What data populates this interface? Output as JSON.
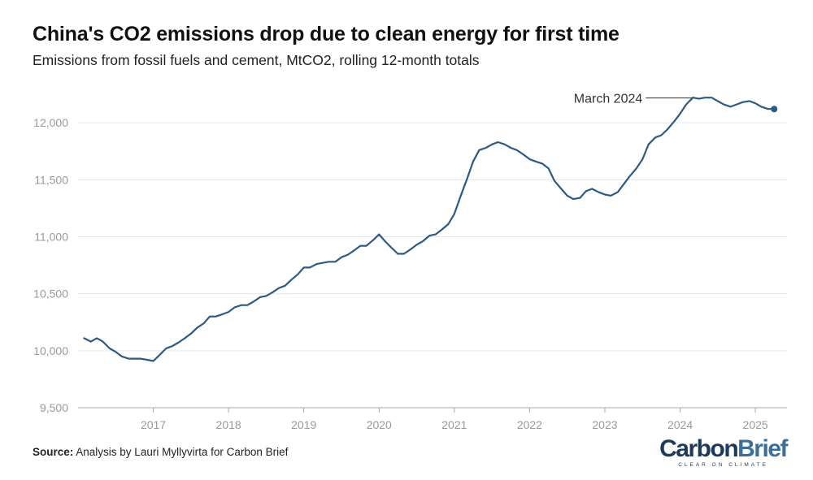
{
  "title": "China's CO2 emissions drop due to clean energy for first time",
  "subtitle": "Emissions from fossil fuels and cement, MtCO2, rolling 12-month totals",
  "source_label": "Source:",
  "source_text": "Analysis by Lauri Myllyvirta for Carbon Brief",
  "logo": {
    "part1": "Carbon",
    "part2": "Brief",
    "tagline": "CLEAR ON CLIMATE"
  },
  "colors": {
    "line": "#2b5a82",
    "grid": "#e6e6e6",
    "axis": "#aaaaaa",
    "tick_text": "#999999",
    "annotation_text": "#333333"
  },
  "chart_data": {
    "type": "line",
    "title": "China's CO2 emissions drop due to clean energy for first time",
    "subtitle": "Emissions from fossil fuels and cement, MtCO2, rolling 12-month totals",
    "xlabel": "",
    "ylabel": "",
    "ylim": [
      9500,
      12250
    ],
    "xlim": [
      2016.0,
      2025.42
    ],
    "yticks": [
      9500,
      10000,
      10500,
      11000,
      11500,
      12000
    ],
    "ytick_labels": [
      "9,500",
      "10,000",
      "10,500",
      "11,000",
      "11,500",
      "12,000"
    ],
    "xticks": [
      2017,
      2018,
      2019,
      2020,
      2021,
      2022,
      2023,
      2024,
      2025
    ],
    "xtick_labels": [
      "2017",
      "2018",
      "2019",
      "2020",
      "2021",
      "2022",
      "2023",
      "2024",
      "2025"
    ],
    "grid": true,
    "annotation": {
      "text": "March 2024",
      "x": 2024.17,
      "y": 12210
    },
    "series": [
      {
        "name": "China CO2 emissions",
        "x": [
          2016.08,
          2016.17,
          2016.25,
          2016.33,
          2016.42,
          2016.5,
          2016.58,
          2016.67,
          2016.75,
          2016.83,
          2016.92,
          2017.0,
          2017.08,
          2017.17,
          2017.25,
          2017.33,
          2017.42,
          2017.5,
          2017.58,
          2017.67,
          2017.75,
          2017.83,
          2017.92,
          2018.0,
          2018.08,
          2018.17,
          2018.25,
          2018.33,
          2018.42,
          2018.5,
          2018.58,
          2018.67,
          2018.75,
          2018.83,
          2018.92,
          2019.0,
          2019.08,
          2019.17,
          2019.25,
          2019.33,
          2019.42,
          2019.5,
          2019.58,
          2019.67,
          2019.75,
          2019.83,
          2019.92,
          2020.0,
          2020.08,
          2020.17,
          2020.25,
          2020.33,
          2020.42,
          2020.5,
          2020.58,
          2020.67,
          2020.75,
          2020.83,
          2020.92,
          2021.0,
          2021.08,
          2021.17,
          2021.25,
          2021.33,
          2021.42,
          2021.5,
          2021.58,
          2021.67,
          2021.75,
          2021.83,
          2021.92,
          2022.0,
          2022.08,
          2022.17,
          2022.25,
          2022.33,
          2022.42,
          2022.5,
          2022.58,
          2022.67,
          2022.75,
          2022.83,
          2022.92,
          2023.0,
          2023.08,
          2023.17,
          2023.25,
          2023.33,
          2023.42,
          2023.5,
          2023.58,
          2023.67,
          2023.75,
          2023.83,
          2023.92,
          2024.0,
          2024.08,
          2024.17,
          2024.25,
          2024.33,
          2024.42,
          2024.5,
          2024.58,
          2024.67,
          2024.75,
          2024.83,
          2024.92,
          2025.0,
          2025.08,
          2025.17,
          2025.25
        ],
        "values": [
          10110,
          10080,
          10110,
          10080,
          10020,
          9990,
          9950,
          9930,
          9930,
          9930,
          9920,
          9910,
          9960,
          10020,
          10040,
          10070,
          10110,
          10150,
          10200,
          10240,
          10300,
          10300,
          10320,
          10340,
          10380,
          10400,
          10400,
          10430,
          10470,
          10480,
          10510,
          10550,
          10570,
          10620,
          10670,
          10730,
          10730,
          10760,
          10770,
          10780,
          10780,
          10820,
          10840,
          10880,
          10920,
          10920,
          10970,
          11020,
          10960,
          10900,
          10850,
          10850,
          10890,
          10930,
          10960,
          11010,
          11020,
          11060,
          11110,
          11200,
          11350,
          11510,
          11660,
          11760,
          11780,
          11810,
          11830,
          11810,
          11780,
          11760,
          11720,
          11680,
          11660,
          11640,
          11600,
          11490,
          11420,
          11360,
          11330,
          11340,
          11400,
          11420,
          11390,
          11370,
          11360,
          11390,
          11460,
          11530,
          11600,
          11680,
          11810,
          11870,
          11890,
          11940,
          12010,
          12080,
          12160,
          12220,
          12210,
          12220,
          12220,
          12190,
          12160,
          12140,
          12160,
          12180,
          12190,
          12170,
          12140,
          12120,
          12120
        ]
      }
    ]
  }
}
